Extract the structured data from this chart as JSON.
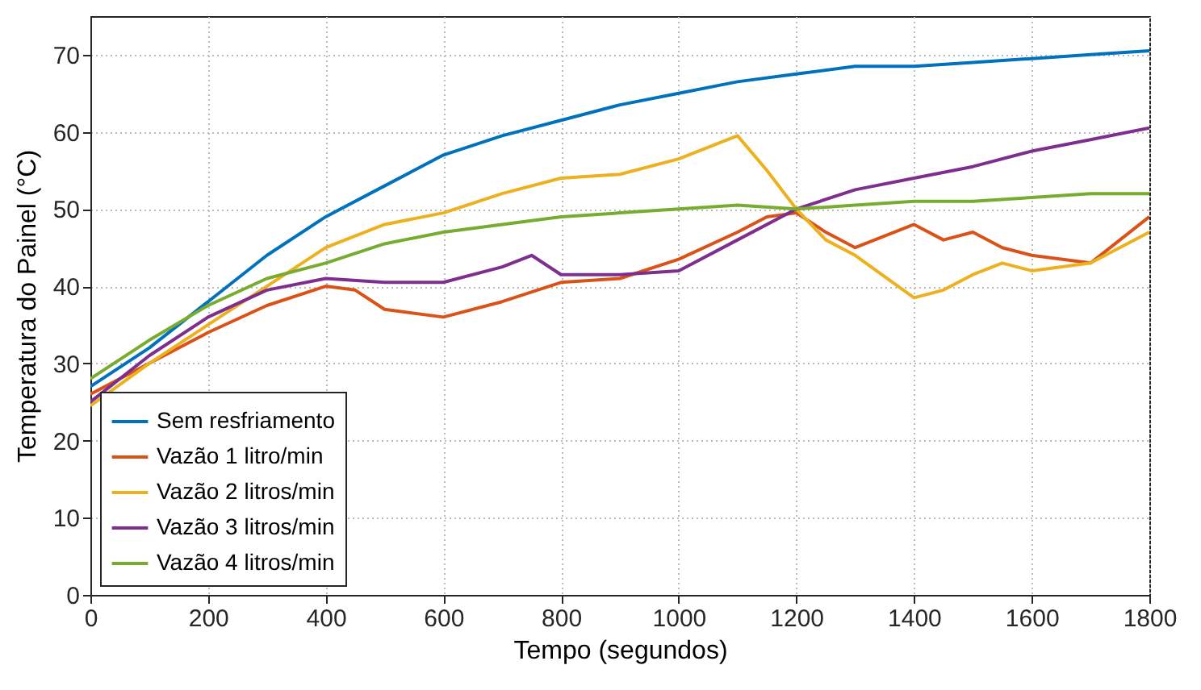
{
  "chart_data": {
    "type": "line",
    "xlabel": "Tempo (segundos)",
    "ylabel": "Temperatura do Painel (°C)",
    "xlim": [
      0,
      1800
    ],
    "xticks": [
      0,
      200,
      400,
      600,
      800,
      1000,
      1200,
      1400,
      1600,
      1800
    ],
    "ylim": [
      0,
      75
    ],
    "yticks": [
      0,
      10,
      20,
      30,
      40,
      50,
      60,
      70
    ],
    "grid": true,
    "legend": "bottom left",
    "line_style": "solid",
    "series": [
      {
        "name": "Sem resfriamento",
        "color": "#0072bd",
        "x": [
          0,
          100,
          200,
          300,
          400,
          500,
          600,
          700,
          800,
          900,
          1000,
          1100,
          1200,
          1300,
          1400,
          1500,
          1600,
          1700,
          1800
        ],
        "values": [
          27,
          32,
          38,
          44,
          49,
          53,
          57,
          59.5,
          61.5,
          63.5,
          65,
          66.5,
          67.5,
          68.5,
          68.5,
          69,
          69.5,
          70,
          70.5
        ]
      },
      {
        "name": "Vazão 1 litro/min",
        "color": "#d95319",
        "x": [
          0,
          100,
          200,
          300,
          400,
          450,
          500,
          600,
          700,
          800,
          900,
          1000,
          1100,
          1150,
          1200,
          1250,
          1300,
          1400,
          1450,
          1500,
          1550,
          1600,
          1700,
          1800
        ],
        "values": [
          26,
          30,
          34,
          37.5,
          40,
          39.5,
          37,
          36,
          38,
          40.5,
          41,
          43.5,
          47,
          49,
          49.5,
          47,
          45,
          48,
          46,
          47,
          45,
          44,
          43,
          49
        ]
      },
      {
        "name": "Vazão 2 litros/min",
        "color": "#edb120",
        "x": [
          0,
          100,
          200,
          300,
          400,
          500,
          600,
          700,
          800,
          900,
          1000,
          1100,
          1150,
          1200,
          1250,
          1300,
          1400,
          1450,
          1500,
          1550,
          1600,
          1700,
          1800
        ],
        "values": [
          24.5,
          30,
          35,
          40,
          45,
          48,
          49.5,
          52,
          54,
          54.5,
          56.5,
          59.5,
          55,
          50,
          46,
          44,
          38.5,
          39.5,
          41.5,
          43,
          42,
          43,
          47
        ]
      },
      {
        "name": "Vazão 3 litros/min",
        "color": "#7e2f8e",
        "x": [
          0,
          100,
          200,
          300,
          400,
          500,
          600,
          700,
          750,
          800,
          900,
          1000,
          1100,
          1200,
          1300,
          1400,
          1500,
          1600,
          1700,
          1800
        ],
        "values": [
          25,
          31,
          36,
          39.5,
          41,
          40.5,
          40.5,
          42.5,
          44,
          41.5,
          41.5,
          42,
          46,
          50,
          52.5,
          54,
          55.5,
          57.5,
          59,
          60.5
        ]
      },
      {
        "name": "Vazão 4 litros/min",
        "color": "#77ac30",
        "x": [
          0,
          100,
          200,
          300,
          400,
          500,
          600,
          700,
          800,
          900,
          1000,
          1100,
          1200,
          1300,
          1400,
          1500,
          1600,
          1700,
          1800
        ],
        "values": [
          28,
          33,
          37.5,
          41,
          43,
          45.5,
          47,
          48,
          49,
          49.5,
          50,
          50.5,
          50,
          50.5,
          51,
          51,
          51.5,
          52,
          52
        ]
      }
    ]
  }
}
